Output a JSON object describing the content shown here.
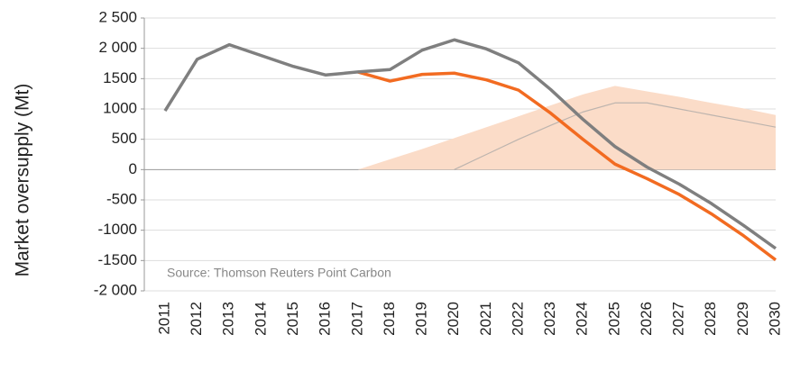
{
  "chart_data": {
    "type": "line",
    "y_label": "Market oversupply (Mt)",
    "annotation": "Source: Thomson Reuters Point Carbon",
    "categories": [
      "2011",
      "2012",
      "2013",
      "2014",
      "2015",
      "2016",
      "2017",
      "2018",
      "2019",
      "2020",
      "2021",
      "2022",
      "2023",
      "2024",
      "2025",
      "2026",
      "2027",
      "2028",
      "2029",
      "2030"
    ],
    "ylim": [
      -2000,
      2500
    ],
    "yticks": [
      {
        "value": 2500,
        "label": "2 500"
      },
      {
        "value": 2000,
        "label": "2 000"
      },
      1500,
      1000,
      500,
      0,
      -500,
      -1000,
      -1500,
      {
        "value": -2000,
        "label": "-2 000"
      }
    ],
    "grid": true,
    "series": [
      {
        "type": "area",
        "color": "#fbdcc8",
        "values": [
          null,
          null,
          null,
          null,
          null,
          null,
          0,
          170,
          340,
          520,
          700,
          880,
          1060,
          1240,
          1380,
          1290,
          1200,
          1100,
          1010,
          900
        ]
      },
      {
        "type": "line",
        "color": "#bdb4ae",
        "width": 1.2,
        "values": [
          null,
          null,
          null,
          null,
          null,
          null,
          null,
          null,
          null,
          0,
          250,
          500,
          730,
          950,
          1100,
          1100,
          1000,
          900,
          800,
          700
        ]
      },
      {
        "type": "line",
        "color": "#f26b21",
        "width": 3.5,
        "values": [
          null,
          null,
          null,
          null,
          null,
          null,
          1610,
          1460,
          1570,
          1590,
          1480,
          1310,
          930,
          500,
          90,
          -150,
          -410,
          -730,
          -1090,
          -1490
        ]
      },
      {
        "type": "line",
        "color": "#7f7f7f",
        "width": 3.5,
        "values": [
          970,
          1820,
          2060,
          1880,
          1700,
          1560,
          1610,
          1650,
          1970,
          2140,
          1990,
          1760,
          1320,
          830,
          380,
          40,
          -240,
          -560,
          -920,
          -1300
        ]
      }
    ]
  }
}
